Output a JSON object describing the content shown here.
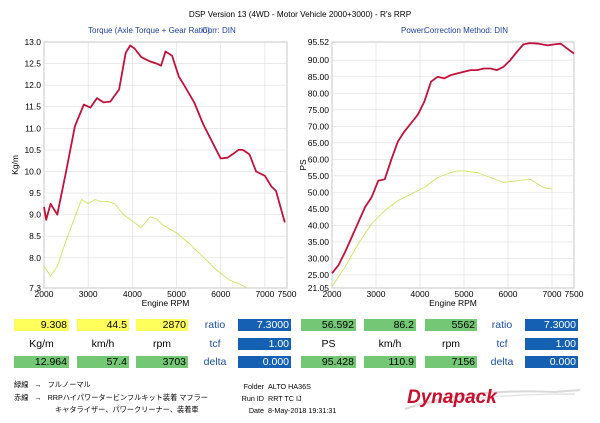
{
  "title": "DSP Version 13 (4WD - Motor Vehicle 2000+3000) - R's  RRP",
  "left_header": {
    "label": "Torque (Axle Torque + Gear Ratio):",
    "corr": "Corr: DIN"
  },
  "right_header": {
    "label": "Power:",
    "corr": "Correction Method: DIN"
  },
  "colors": {
    "red_curve": "#c0123a",
    "green_curve": "#cde35e",
    "yellow_cell": "#ffff5c",
    "green_cell": "#74c774",
    "blue_cell": "#1560b3"
  },
  "chart_data": [
    {
      "type": "line",
      "ylabel": "Kg/m",
      "xlabel": "Engine RPM",
      "xlim": [
        2000,
        7500
      ],
      "ylim": [
        7.3,
        13.0
      ],
      "x_ticks": [
        "2000",
        "3000",
        "4000",
        "5000",
        "6000",
        "7000",
        "7500"
      ],
      "y_ticks": [
        "13.0",
        "12.5",
        "12.0",
        "11.5",
        "11.0",
        "10.5",
        "10.0",
        "9.5",
        "9.0",
        "8.5",
        "8.0",
        "7.3"
      ],
      "grid": true,
      "series": [
        {
          "color": "red_curve",
          "x": [
            2000,
            2050,
            2150,
            2300,
            2500,
            2700,
            2900,
            3050,
            3200,
            3350,
            3500,
            3700,
            3850,
            3950,
            4050,
            4200,
            4400,
            4550,
            4650,
            4750,
            4900,
            5050,
            5200,
            5400,
            5600,
            5800,
            6000,
            6150,
            6300,
            6400,
            6500,
            6650,
            6800,
            7000,
            7150,
            7250,
            7400,
            7450
          ],
          "y": [
            9.18,
            8.88,
            9.25,
            9.0,
            10.0,
            11.05,
            11.55,
            11.48,
            11.7,
            11.6,
            11.62,
            11.9,
            12.75,
            12.92,
            12.85,
            12.65,
            12.55,
            12.5,
            12.45,
            12.78,
            12.68,
            12.2,
            11.95,
            11.6,
            11.1,
            10.7,
            10.3,
            10.32,
            10.42,
            10.5,
            10.5,
            10.4,
            10.0,
            9.9,
            9.65,
            9.55,
            9.0,
            8.82
          ]
        },
        {
          "color": "green_curve",
          "x": [
            2000,
            2150,
            2300,
            2500,
            2700,
            2850,
            3000,
            3150,
            3300,
            3450,
            3600,
            3800,
            4000,
            4200,
            4300,
            4400,
            4550,
            4700,
            5000,
            5300,
            5600,
            5900,
            6200,
            6450,
            6600
          ],
          "y": [
            7.8,
            7.58,
            7.8,
            8.4,
            8.95,
            9.35,
            9.25,
            9.35,
            9.3,
            9.3,
            9.25,
            9.0,
            8.85,
            8.7,
            8.82,
            8.95,
            8.9,
            8.75,
            8.58,
            8.32,
            8.02,
            7.72,
            7.48,
            7.38,
            7.3
          ]
        }
      ]
    },
    {
      "type": "line",
      "ylabel": "PS",
      "xlabel": "Engine RPM",
      "xlim": [
        2000,
        7500
      ],
      "ylim": [
        21.05,
        95.52
      ],
      "x_ticks": [
        "2000",
        "3000",
        "4000",
        "5000",
        "6000",
        "7000",
        "7500"
      ],
      "y_ticks": [
        "95.52",
        "90.00",
        "85.00",
        "80.00",
        "75.00",
        "70.00",
        "65.00",
        "60.00",
        "55.00",
        "50.00",
        "45.00",
        "40.00",
        "35.00",
        "30.00",
        "25.00",
        "21.05"
      ],
      "grid": true,
      "series": [
        {
          "color": "red_curve",
          "x": [
            2000,
            2150,
            2300,
            2450,
            2600,
            2750,
            2900,
            3050,
            3200,
            3350,
            3500,
            3650,
            3800,
            3950,
            4100,
            4250,
            4400,
            4550,
            4700,
            4850,
            5000,
            5150,
            5300,
            5450,
            5600,
            5750,
            5900,
            6050,
            6200,
            6350,
            6500,
            6700,
            6900,
            7050,
            7200,
            7350,
            7500
          ],
          "y": [
            25.5,
            28.0,
            32.0,
            36.5,
            41.0,
            45.5,
            48.5,
            53.5,
            54.0,
            60.0,
            65.5,
            68.5,
            71.0,
            73.5,
            77.5,
            83.5,
            85.0,
            84.5,
            85.5,
            86.0,
            86.5,
            87.0,
            87.0,
            87.5,
            87.5,
            87.0,
            88.0,
            90.0,
            92.5,
            94.8,
            95.2,
            95.0,
            94.5,
            94.8,
            95.0,
            93.5,
            92.0
          ]
        },
        {
          "color": "green_curve",
          "x": [
            2000,
            2300,
            2600,
            2900,
            3200,
            3500,
            3800,
            4100,
            4400,
            4700,
            4850,
            5000,
            5300,
            5600,
            5900,
            6200,
            6500,
            6800,
            7000
          ],
          "y": [
            21.5,
            27.5,
            34.5,
            40.5,
            44.5,
            47.5,
            49.5,
            51.5,
            54.5,
            56.0,
            56.5,
            56.5,
            56.0,
            54.5,
            53.0,
            53.5,
            54.0,
            51.5,
            51.0
          ]
        }
      ]
    }
  ],
  "stats": {
    "row1": {
      "left_vals": [
        "9.308",
        "44.5",
        "2870"
      ],
      "right_vals": [
        "56.592",
        "86.2",
        "5562"
      ],
      "param": "ratio",
      "param_val": "7.3000",
      "param_val_right": "7.3000"
    },
    "row2": {
      "left_labels": [
        "Kg/m",
        "km/h",
        "rpm"
      ],
      "right_labels": [
        "PS",
        "km/h",
        "rpm"
      ],
      "param": "tcf",
      "param_val": "1.00",
      "param_val_right": "1.00"
    },
    "row3": {
      "left_vals": [
        "12.964",
        "57.4",
        "3703"
      ],
      "right_vals": [
        "95.428",
        "110.9",
        "7156"
      ],
      "param": "delta",
      "param_val": "0.000",
      "param_val_right": "0.000"
    }
  },
  "notes": [
    {
      "key": "緑線",
      "arrow": "→",
      "text": "フルノーマル"
    },
    {
      "key": "赤線",
      "arrow": "→",
      "text": "RRPハイパワータービンフルキット装着  マフラー"
    },
    {
      "key": "",
      "arrow": "",
      "text": "キャタライザー、パワークリーナー、装着車"
    }
  ],
  "info": {
    "folder_label": "Folder",
    "folder_value": "ALTO HA36S",
    "runid_label": "Run ID",
    "runid_value": "RRT TC IJ",
    "date_label": "Date",
    "date_value": "8-May-2018 19:31:31"
  },
  "brand": "Dynapack"
}
